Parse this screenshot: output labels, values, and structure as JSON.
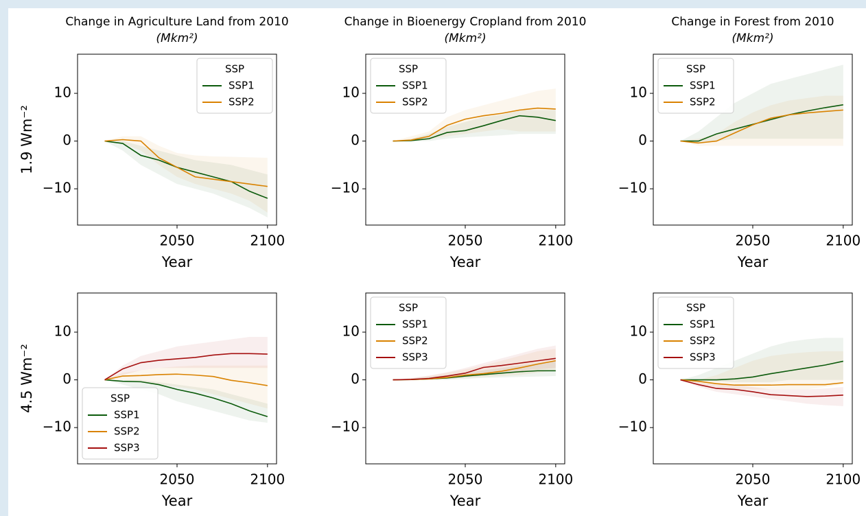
{
  "chart_data": [
    {
      "type": "line",
      "title": "Change in Agriculture Land from 2010",
      "unit": "(Mkm²)",
      "xlabel": "Year",
      "ylabel": "1.9 Wm⁻²",
      "x": [
        2010,
        2020,
        2030,
        2040,
        2050,
        2060,
        2070,
        2080,
        2090,
        2100
      ],
      "xlim": [
        1995,
        2105
      ],
      "ylim": [
        -17.6,
        18.2
      ],
      "xticks": [
        2050,
        2100
      ],
      "yticks": [
        {
          "value": -10,
          "label": "−10"
        },
        0,
        10
      ],
      "legend": {
        "title": "SSP",
        "loc": "upper right"
      },
      "series": [
        {
          "name": "SSP1",
          "color": "#0b5a0b",
          "values": [
            0,
            -0.5,
            -3,
            -4,
            -5.5,
            -6.5,
            -7.5,
            -8.5,
            -10.5,
            -12
          ],
          "lower": [
            0,
            -2,
            -5,
            -7,
            -9,
            -10,
            -11,
            -12.5,
            -14,
            -16
          ],
          "upper": [
            0,
            0,
            -1,
            -2,
            -3,
            -4,
            -4.5,
            -5,
            -6,
            -7
          ]
        },
        {
          "name": "SSP2",
          "color": "#d98200",
          "values": [
            0,
            0.3,
            0,
            -3.5,
            -5.5,
            -7.5,
            -8,
            -8.5,
            -9,
            -9.5
          ],
          "lower": [
            0,
            -0.5,
            -2,
            -5,
            -7.5,
            -9,
            -10,
            -11,
            -12.5,
            -15
          ],
          "upper": [
            0,
            1,
            1,
            -1,
            -2.5,
            -3,
            -3.2,
            -3.3,
            -3.4,
            -3.5
          ]
        }
      ]
    },
    {
      "type": "line",
      "title": "Change in Bioenergy Cropland from 2010",
      "unit": "(Mkm²)",
      "xlabel": "Year",
      "x": [
        2010,
        2020,
        2030,
        2040,
        2050,
        2060,
        2070,
        2080,
        2090,
        2100
      ],
      "xlim": [
        1995,
        2105
      ],
      "ylim": [
        -17.6,
        18.2
      ],
      "xticks": [
        2050,
        2100
      ],
      "yticks": [
        {
          "value": -10,
          "label": "−10"
        },
        0,
        10
      ],
      "legend": {
        "title": "SSP",
        "loc": "upper left"
      },
      "series": [
        {
          "name": "SSP1",
          "color": "#0b5a0b",
          "values": [
            0,
            0.1,
            0.5,
            1.8,
            2.2,
            3.2,
            4.3,
            5.3,
            5,
            4.3
          ],
          "lower": [
            0,
            0,
            0,
            0.5,
            0.8,
            1,
            1.2,
            1.5,
            1.5,
            1.5
          ],
          "upper": [
            0,
            0.5,
            1.5,
            3,
            4,
            5,
            5.5,
            6.5,
            6.5,
            6.5
          ]
        },
        {
          "name": "SSP2",
          "color": "#d98200",
          "values": [
            0,
            0.2,
            1,
            3.3,
            4.6,
            5.3,
            5.8,
            6.5,
            6.9,
            6.7
          ],
          "lower": [
            0,
            0,
            0.3,
            1,
            1.5,
            2,
            2.5,
            2,
            2,
            2
          ],
          "upper": [
            0,
            1,
            2,
            5,
            6.5,
            7.5,
            8.5,
            9.5,
            10.5,
            11
          ]
        }
      ]
    },
    {
      "type": "line",
      "title": "Change in Forest from 2010",
      "unit": "(Mkm²)",
      "xlabel": "Year",
      "x": [
        2010,
        2020,
        2030,
        2040,
        2050,
        2060,
        2070,
        2080,
        2090,
        2100
      ],
      "xlim": [
        1995,
        2105
      ],
      "ylim": [
        -17.6,
        18.2
      ],
      "xticks": [
        2050,
        2100
      ],
      "yticks": [
        {
          "value": -10,
          "label": "−10"
        },
        0,
        10
      ],
      "legend": {
        "title": "SSP",
        "loc": "upper left"
      },
      "series": [
        {
          "name": "SSP1",
          "color": "#0b5a0b",
          "values": [
            0,
            0,
            1.5,
            2.5,
            3.5,
            4.5,
            5.5,
            6.3,
            7,
            7.6
          ],
          "lower": [
            0,
            -0.5,
            0,
            0.5,
            0.5,
            0.5,
            0.5,
            0.5,
            0.5,
            0.5
          ],
          "upper": [
            0,
            2,
            5,
            8,
            10,
            12,
            13,
            14,
            15,
            16
          ]
        },
        {
          "name": "SSP2",
          "color": "#d98200",
          "values": [
            0,
            -0.4,
            0,
            1.7,
            3.4,
            4.8,
            5.5,
            5.9,
            6.2,
            6.5
          ],
          "lower": [
            0,
            -1,
            -1,
            -1,
            -1,
            -1,
            -1,
            -1,
            -1,
            -1
          ],
          "upper": [
            0,
            0.5,
            1.5,
            4,
            6,
            7.5,
            8.5,
            9,
            9.5,
            9.5
          ]
        }
      ]
    },
    {
      "type": "line",
      "xlabel": "Year",
      "ylabel": "4.5 Wm⁻²",
      "x": [
        2010,
        2020,
        2030,
        2040,
        2050,
        2060,
        2070,
        2080,
        2090,
        2100
      ],
      "xlim": [
        1995,
        2105
      ],
      "ylim": [
        -17.6,
        18.2
      ],
      "xticks": [
        2050,
        2100
      ],
      "yticks": [
        {
          "value": -10,
          "label": "−10"
        },
        0,
        10
      ],
      "legend": {
        "title": "SSP",
        "loc": "lower left"
      },
      "series": [
        {
          "name": "SSP1",
          "color": "#0b5a0b",
          "values": [
            0,
            -0.3,
            -0.4,
            -1,
            -2,
            -2.8,
            -3.8,
            -5,
            -6.5,
            -7.7
          ],
          "lower": [
            0,
            -1,
            -2,
            -3,
            -4.5,
            -5.5,
            -6.5,
            -7.5,
            -8.5,
            -9
          ],
          "upper": [
            0,
            0,
            0,
            -0.5,
            -1,
            -1.5,
            -2,
            -3,
            -4,
            -5
          ]
        },
        {
          "name": "SSP2",
          "color": "#d98200",
          "values": [
            0,
            0.8,
            0.9,
            1.1,
            1.2,
            1,
            0.7,
            -0.1,
            -0.6,
            -1.2
          ],
          "lower": [
            0,
            0,
            -0.5,
            -1,
            -1.5,
            -2,
            -3,
            -4,
            -5,
            -6
          ],
          "upper": [
            0,
            1.5,
            2,
            2.5,
            2.8,
            3,
            3,
            3,
            3,
            3
          ]
        },
        {
          "name": "SSP3",
          "color": "#a50f0f",
          "values": [
            0,
            2.3,
            3.6,
            4.1,
            4.4,
            4.7,
            5.2,
            5.5,
            5.5,
            5.4
          ],
          "lower": [
            0,
            1,
            2,
            2.5,
            2.5,
            2.5,
            2.5,
            2.5,
            2.5,
            2.5
          ],
          "upper": [
            0,
            3,
            5,
            6,
            7,
            7.5,
            8,
            8.5,
            9,
            9
          ]
        }
      ]
    },
    {
      "type": "line",
      "xlabel": "Year",
      "x": [
        2010,
        2020,
        2030,
        2040,
        2050,
        2060,
        2070,
        2080,
        2090,
        2100
      ],
      "xlim": [
        1995,
        2105
      ],
      "ylim": [
        -17.6,
        18.2
      ],
      "xticks": [
        2050,
        2100
      ],
      "yticks": [
        {
          "value": -10,
          "label": "−10"
        },
        0,
        10
      ],
      "legend": {
        "title": "SSP",
        "loc": "upper left"
      },
      "series": [
        {
          "name": "SSP1",
          "color": "#0b5a0b",
          "values": [
            0,
            0.05,
            0.2,
            0.4,
            0.8,
            1.1,
            1.4,
            1.7,
            1.9,
            1.9
          ],
          "lower": [
            0,
            0,
            0,
            0,
            0.2,
            0.4,
            0.5,
            0.6,
            0.7,
            0.8
          ],
          "upper": [
            0,
            0.3,
            0.6,
            1,
            1.5,
            2,
            2.5,
            3,
            3.5,
            4
          ]
        },
        {
          "name": "SSP2",
          "color": "#d98200",
          "values": [
            0,
            0.05,
            0.2,
            0.5,
            1,
            1.3,
            1.8,
            2.5,
            3.3,
            4
          ],
          "lower": [
            0,
            0,
            0,
            0.2,
            0.4,
            0.6,
            0.8,
            1,
            1.5,
            2
          ],
          "upper": [
            0,
            0.3,
            0.8,
            1.5,
            2.2,
            3,
            4,
            5,
            6,
            6.5
          ]
        },
        {
          "name": "SSP3",
          "color": "#a50f0f",
          "values": [
            0,
            0.1,
            0.3,
            0.8,
            1.4,
            2.6,
            3,
            3.5,
            4,
            4.5
          ],
          "lower": [
            0,
            0,
            0.1,
            0.3,
            0.6,
            1,
            1.4,
            1.8,
            2.2,
            2.5
          ],
          "upper": [
            0,
            0.4,
            0.9,
            1.6,
            2.5,
            3.5,
            4.5,
            5.5,
            6.5,
            7.2
          ]
        }
      ]
    },
    {
      "type": "line",
      "xlabel": "Year",
      "x": [
        2010,
        2020,
        2030,
        2040,
        2050,
        2060,
        2070,
        2080,
        2090,
        2100
      ],
      "xlim": [
        1995,
        2105
      ],
      "ylim": [
        -17.6,
        18.2
      ],
      "xticks": [
        2050,
        2100
      ],
      "yticks": [
        {
          "value": -10,
          "label": "−10"
        },
        0,
        10
      ],
      "legend": {
        "title": "SSP",
        "loc": "upper left"
      },
      "series": [
        {
          "name": "SSP1",
          "color": "#0b5a0b",
          "values": [
            0,
            0,
            0,
            0.2,
            0.6,
            1.3,
            1.9,
            2.5,
            3.1,
            3.9
          ],
          "lower": [
            0,
            0,
            -0.3,
            -0.5,
            -0.5,
            -0.5,
            0,
            0,
            0,
            0
          ],
          "upper": [
            0,
            1,
            2.5,
            4,
            5.5,
            7,
            8,
            8.5,
            8.8,
            8.8
          ]
        },
        {
          "name": "SSP2",
          "color": "#d98200",
          "values": [
            0,
            -0.3,
            -0.8,
            -1.1,
            -1.1,
            -1.1,
            -1,
            -1,
            -1,
            -0.6
          ],
          "lower": [
            0,
            -1,
            -1.5,
            -2,
            -2,
            -2,
            -2,
            -2,
            -1.5,
            -1
          ],
          "upper": [
            0,
            0,
            1,
            2.5,
            4,
            5,
            5.5,
            5.8,
            6,
            6
          ]
        },
        {
          "name": "SSP3",
          "color": "#a50f0f",
          "values": [
            0,
            -1,
            -1.8,
            -2,
            -2.5,
            -3.1,
            -3.3,
            -3.5,
            -3.4,
            -3.2
          ],
          "lower": [
            0,
            -1.5,
            -2.5,
            -3,
            -3.5,
            -4,
            -4.5,
            -5,
            -5.3,
            -5.5
          ],
          "upper": [
            0,
            -0.5,
            -1,
            -1,
            -1.5,
            -2,
            -2,
            -2,
            -1.8,
            -1.5
          ]
        }
      ]
    }
  ]
}
